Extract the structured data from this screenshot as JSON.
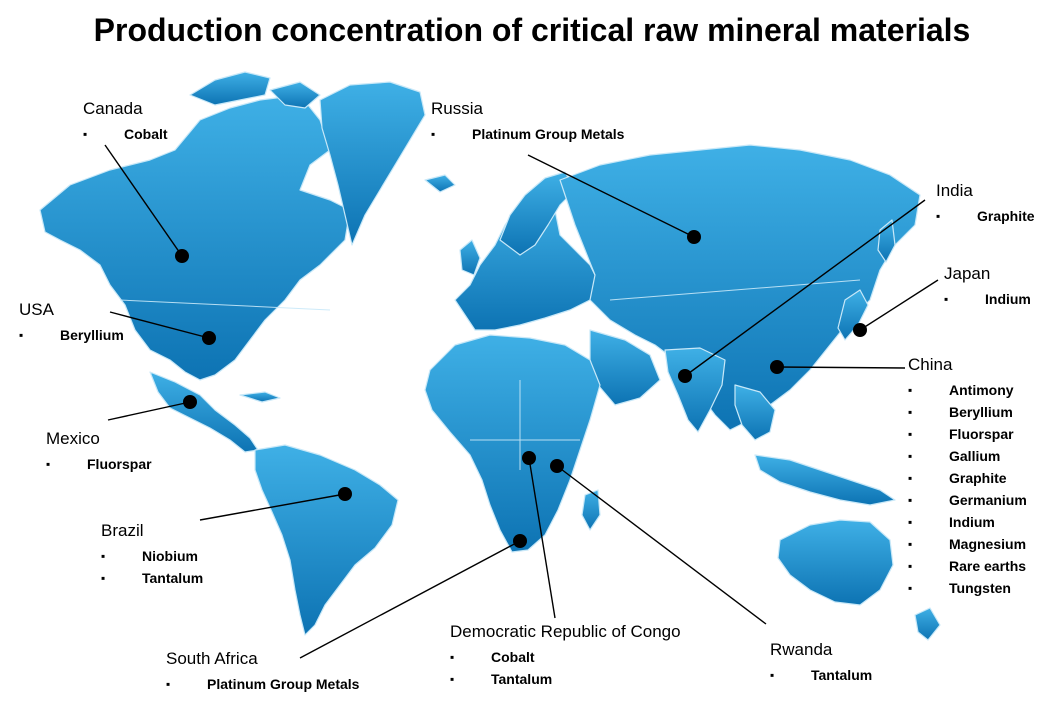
{
  "title": "Production concentration of critical raw mineral materials",
  "colors": {
    "land": "#1b8fd0",
    "land_dark": "#0f6fae",
    "border": "#bfe3f6",
    "leader": "#000000",
    "marker": "#000000"
  },
  "countries": [
    {
      "id": "canada",
      "name": "Canada",
      "minerals": [
        "Cobalt"
      ]
    },
    {
      "id": "russia",
      "name": "Russia",
      "minerals": [
        "Platinum Group Metals"
      ]
    },
    {
      "id": "india",
      "name": "India",
      "minerals": [
        "Graphite"
      ]
    },
    {
      "id": "japan",
      "name": "Japan",
      "minerals": [
        "Indium"
      ]
    },
    {
      "id": "usa",
      "name": "USA",
      "minerals": [
        "Beryllium"
      ]
    },
    {
      "id": "china",
      "name": "China",
      "minerals": [
        "Antimony",
        "Beryllium",
        "Fluorspar",
        "Gallium",
        "Graphite",
        "Germanium",
        "Indium",
        "Magnesium",
        "Rare earths",
        "Tungsten"
      ]
    },
    {
      "id": "mexico",
      "name": "Mexico",
      "minerals": [
        "Fluorspar"
      ]
    },
    {
      "id": "brazil",
      "name": "Brazil",
      "minerals": [
        "Niobium",
        "Tantalum"
      ]
    },
    {
      "id": "south-africa",
      "name": "South Africa",
      "minerals": [
        "Platinum Group Metals"
      ]
    },
    {
      "id": "drc",
      "name": "Democratic Republic of Congo",
      "minerals": [
        "Cobalt",
        "Tantalum"
      ]
    },
    {
      "id": "rwanda",
      "name": "Rwanda",
      "minerals": [
        "Tantalum"
      ]
    }
  ]
}
